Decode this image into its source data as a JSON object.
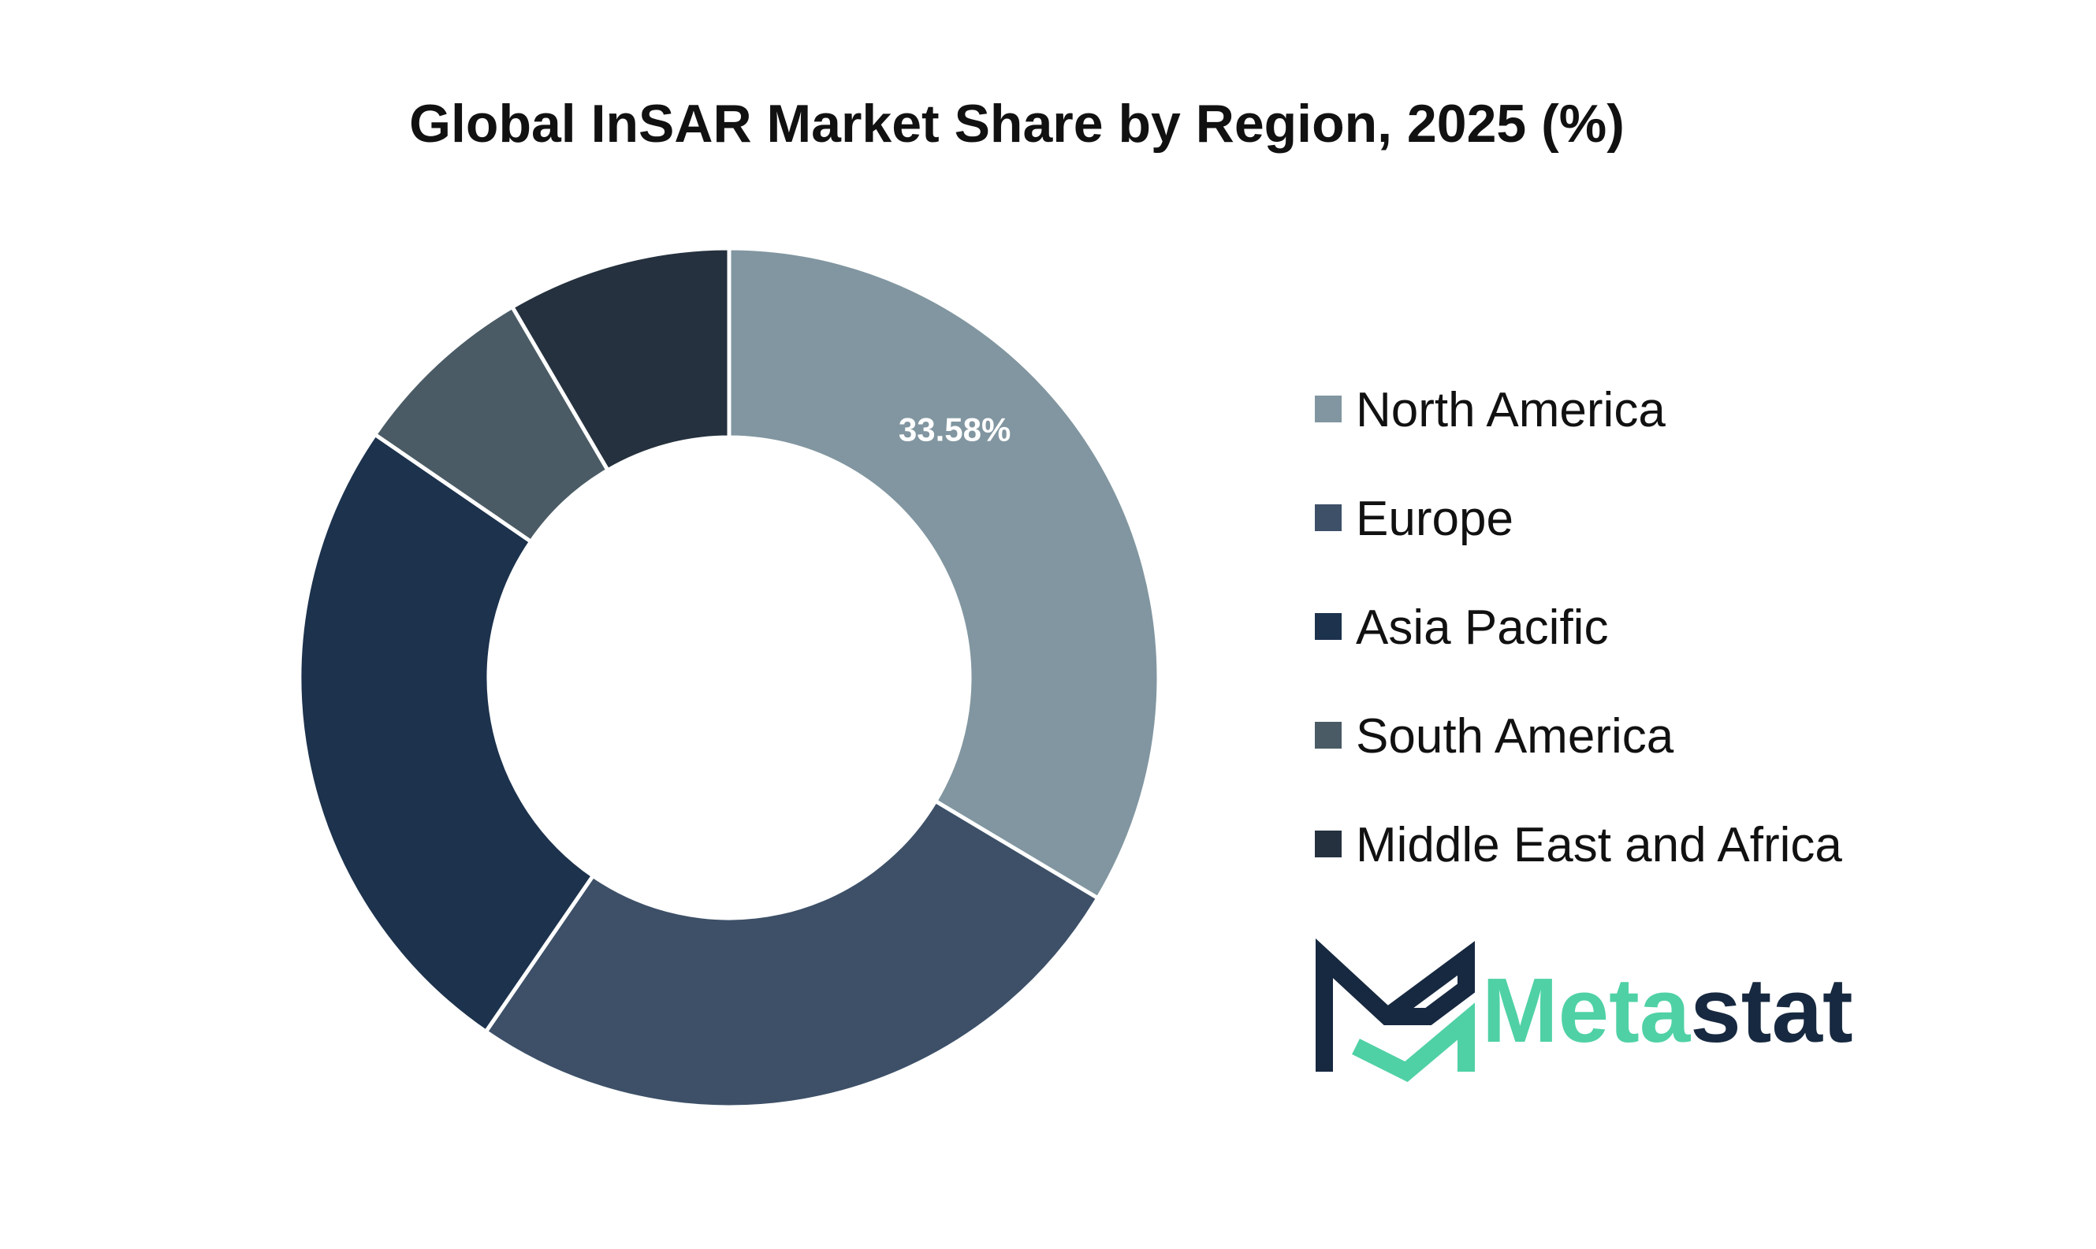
{
  "chart_data": {
    "type": "pie",
    "variant": "donut",
    "title": "Global InSAR Market Share by Region, 2025 (%)",
    "categories": [
      "North America",
      "Europe",
      "Asia Pacific",
      "South America",
      "Middle East and Africa"
    ],
    "values": [
      33.58,
      26.0,
      25.0,
      7.0,
      8.42
    ],
    "colors": [
      "#8196a0",
      "#3d5068",
      "#1c324d",
      "#4a5b65",
      "#25313e"
    ],
    "data_labels": [
      "33.58%",
      "",
      "",
      "",
      ""
    ],
    "legend_position": "right"
  },
  "logo": {
    "text_part1": "Meta",
    "text_part2": "stat",
    "colors": {
      "primary": "#4fd1a5",
      "dark": "#172940"
    }
  },
  "colors": {
    "background": "#ffffff",
    "separator": "#ffffff"
  }
}
